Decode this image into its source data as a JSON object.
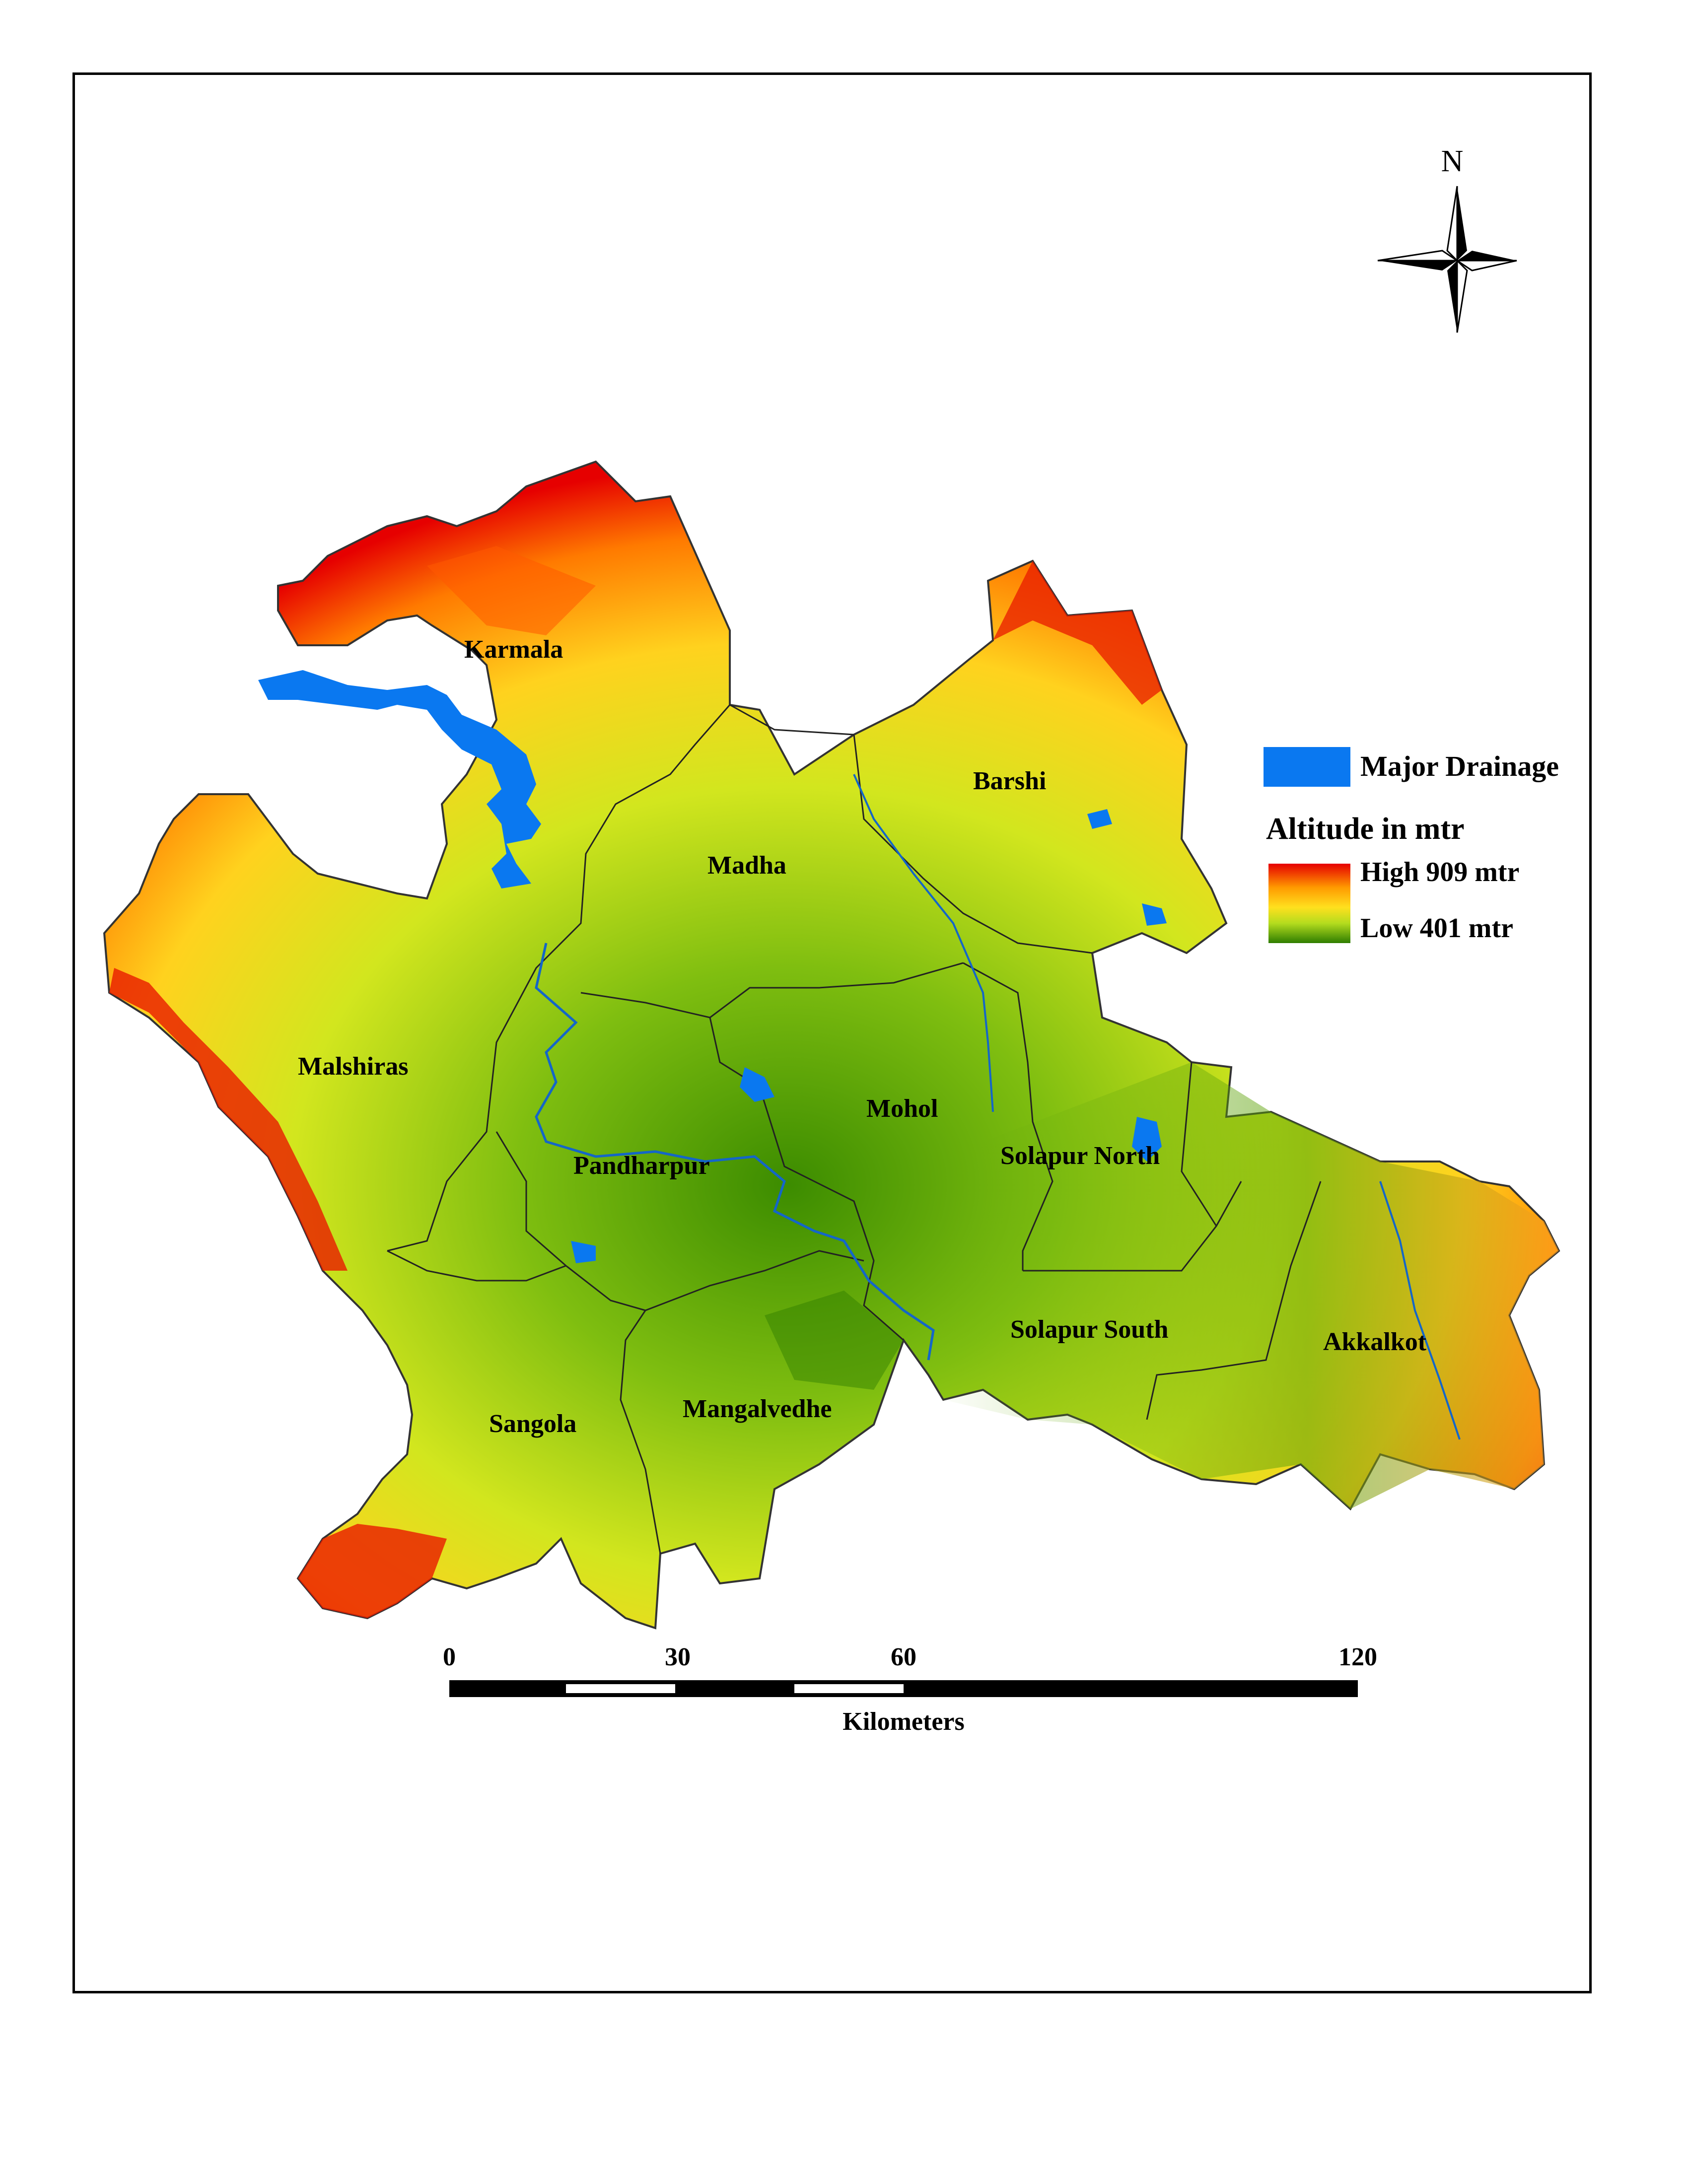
{
  "north_arrow": {
    "label": "N",
    "icon": "north-arrow-compass-icon"
  },
  "talukas": [
    {
      "id": "karmala",
      "name": "Karmala"
    },
    {
      "id": "madha",
      "name": "Madha"
    },
    {
      "id": "barshi",
      "name": "Barshi"
    },
    {
      "id": "malshiras",
      "name": "Malshiras"
    },
    {
      "id": "mohol",
      "name": "Mohol"
    },
    {
      "id": "pandharpur",
      "name": "Pandharpur"
    },
    {
      "id": "solapur-north",
      "name": "Solapur North"
    },
    {
      "id": "solapur-south",
      "name": "Solapur South"
    },
    {
      "id": "akkalkot",
      "name": "Akkalkot"
    },
    {
      "id": "sangola",
      "name": "Sangola"
    },
    {
      "id": "mangalvedhe",
      "name": "Mangalvedhe"
    }
  ],
  "legend": {
    "drainage_label": "Major Drainage",
    "drainage_color": "#0a78f0",
    "altitude_title": "Altitude in mtr",
    "high_label": "High 909 mtr",
    "low_label": "Low 401 mtr",
    "ramp_colors": [
      "#e60000",
      "#ff7a00",
      "#ffd21e",
      "#c8e61e",
      "#3c8c00"
    ]
  },
  "scale_bar": {
    "ticks": [
      "0",
      "30",
      "60",
      "120"
    ],
    "unit": "Kilometers"
  }
}
